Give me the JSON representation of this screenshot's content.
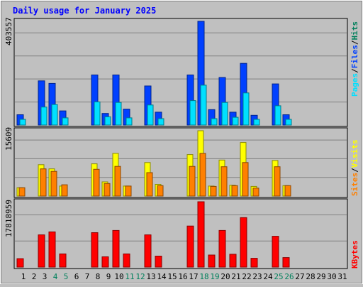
{
  "chart_data": [
    {
      "type": "bar",
      "title": "Daily usage for January 2025",
      "axis_max_label": "403557",
      "categories": [
        "1",
        "2",
        "3",
        "4",
        "5",
        "6",
        "7",
        "8",
        "9",
        "10",
        "11",
        "12",
        "13",
        "14",
        "15",
        "16",
        "17",
        "18",
        "19",
        "20",
        "21",
        "22",
        "23",
        "24",
        "25",
        "26",
        "27",
        "28",
        "29",
        "30",
        "31"
      ],
      "weekend_days": [
        "4",
        "5",
        "11",
        "12",
        "18",
        "19",
        "25",
        "26"
      ],
      "series": [
        {
          "name": "Hits",
          "color": "#00805c",
          "values": [
            0,
            0,
            0,
            0,
            0,
            0,
            0,
            0,
            0,
            0,
            0,
            0,
            0,
            0,
            0,
            0,
            0,
            0,
            0,
            0,
            0,
            0,
            0,
            0,
            0,
            0,
            0,
            0,
            0,
            0,
            0
          ]
        },
        {
          "name": "Files",
          "color": "#0040ff",
          "values": [
            40000,
            0,
            172000,
            162000,
            55000,
            0,
            0,
            195000,
            45000,
            195000,
            62000,
            0,
            152000,
            50000,
            0,
            0,
            195000,
            403557,
            60000,
            185000,
            50000,
            240000,
            38000,
            0,
            160000,
            40000,
            0,
            0,
            0,
            0,
            0
          ]
        },
        {
          "name": "Pages",
          "color": "#00e0ff",
          "values": [
            22000,
            0,
            70000,
            80000,
            28000,
            0,
            0,
            90000,
            32000,
            88000,
            28000,
            0,
            78000,
            25000,
            0,
            0,
            95000,
            155000,
            25000,
            88000,
            30000,
            125000,
            22000,
            0,
            75000,
            22000,
            0,
            0,
            0,
            0,
            0
          ]
        }
      ]
    },
    {
      "type": "bar",
      "axis_max_label": "15609",
      "series": [
        {
          "name": "Visits",
          "color": "#ffff00",
          "values": [
            2000,
            0,
            7500,
            6500,
            2400,
            0,
            0,
            7700,
            3400,
            10200,
            2400,
            0,
            8000,
            2800,
            0,
            0,
            9900,
            15609,
            2400,
            8600,
            2600,
            12800,
            2300,
            0,
            8500,
            2500,
            0,
            0,
            0,
            0,
            0
          ]
        },
        {
          "name": "Sites",
          "color": "#ff8000",
          "values": [
            2000,
            0,
            6500,
            5900,
            2700,
            0,
            0,
            6400,
            3000,
            7100,
            2400,
            0,
            5600,
            2500,
            0,
            0,
            7100,
            10200,
            2300,
            7000,
            2500,
            8000,
            1900,
            0,
            7000,
            2500,
            0,
            0,
            0,
            0,
            0
          ]
        }
      ]
    },
    {
      "type": "bar",
      "axis_max_label": "17818959",
      "series": [
        {
          "name": "KBytes",
          "color": "#ff0000",
          "values": [
            2300000,
            0,
            8800000,
            9600000,
            3600000,
            0,
            0,
            9400000,
            2800000,
            10000000,
            3600000,
            0,
            8800000,
            3000000,
            0,
            0,
            11200000,
            17818959,
            3300000,
            10000000,
            3500000,
            13500000,
            2400000,
            0,
            8400000,
            2600000,
            0,
            0,
            0,
            0,
            0
          ]
        }
      ]
    }
  ]
}
